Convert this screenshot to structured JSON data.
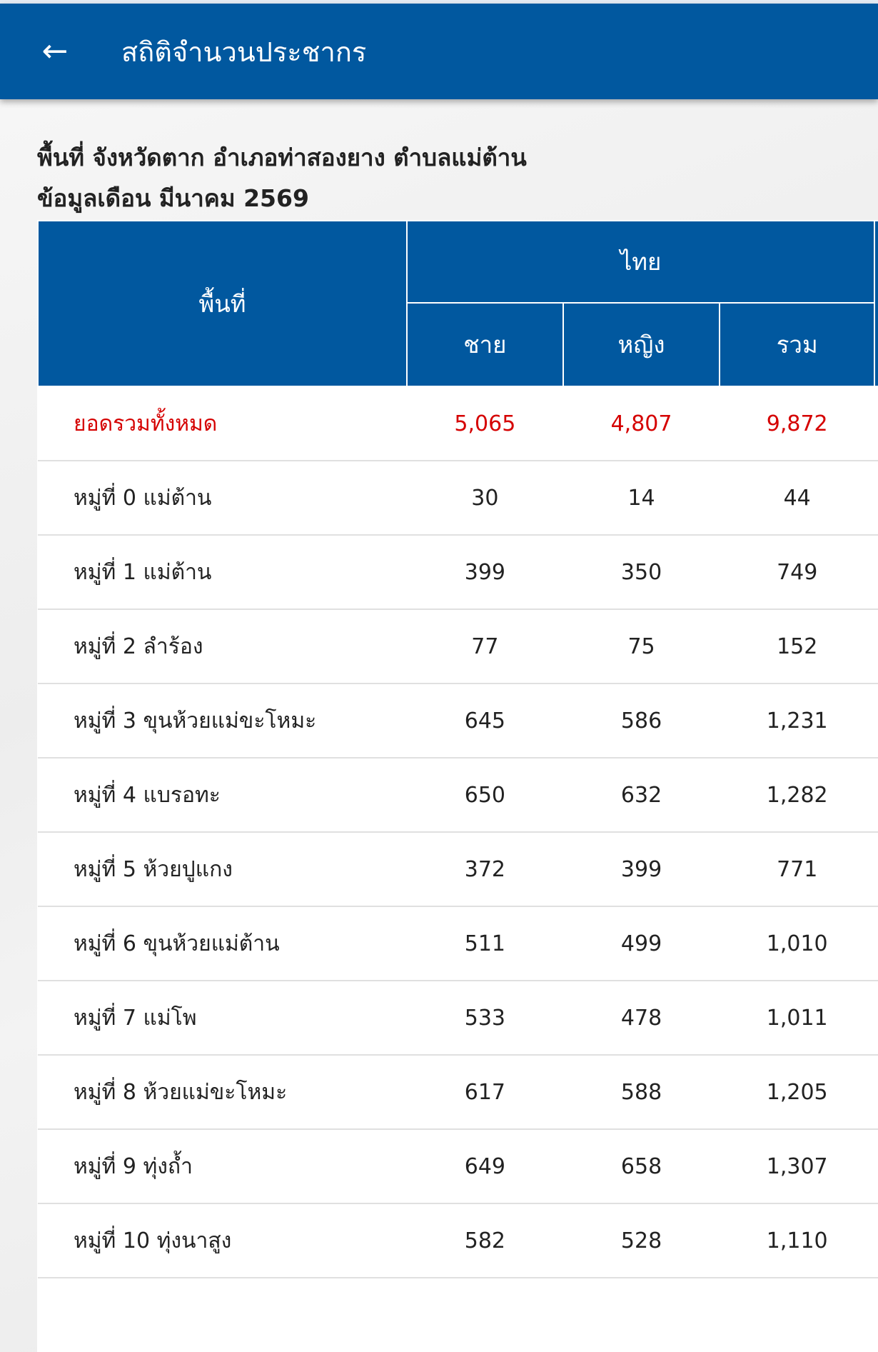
{
  "appbar": {
    "title": "สถิติจำนวนประชากร",
    "back_icon": "arrow-left-icon"
  },
  "heading": {
    "line1": "พื้นที่ จังหวัดตาก อำเภอท่าสองยาง ตำบลแม่ต้าน",
    "line2": "ข้อมูลเดือน มีนาคม 2569"
  },
  "table": {
    "header": {
      "area": "พื้นที่",
      "group": "ไทย",
      "male": "ชาย",
      "female": "หญิง",
      "total": "รวม"
    },
    "total_row": {
      "label": "ยอดรวมทั้งหมด",
      "male": "5,065",
      "female": "4,807",
      "total": "9,872"
    },
    "rows": [
      {
        "label": "หมู่ที่ 0 แม่ต้าน",
        "male": "30",
        "female": "14",
        "total": "44"
      },
      {
        "label": "หมู่ที่ 1 แม่ต้าน",
        "male": "399",
        "female": "350",
        "total": "749"
      },
      {
        "label": "หมู่ที่ 2 ลำร้อง",
        "male": "77",
        "female": "75",
        "total": "152"
      },
      {
        "label": "หมู่ที่ 3 ขุนห้วยแม่ขะโหมะ",
        "male": "645",
        "female": "586",
        "total": "1,231"
      },
      {
        "label": "หมู่ที่ 4 แบรอทะ",
        "male": "650",
        "female": "632",
        "total": "1,282"
      },
      {
        "label": "หมู่ที่ 5 ห้วยปูแกง",
        "male": "372",
        "female": "399",
        "total": "771"
      },
      {
        "label": "หมู่ที่ 6 ขุนห้วยแม่ต้าน",
        "male": "511",
        "female": "499",
        "total": "1,010"
      },
      {
        "label": "หมู่ที่ 7 แม่โพ",
        "male": "533",
        "female": "478",
        "total": "1,011"
      },
      {
        "label": "หมู่ที่ 8 ห้วยแม่ขะโหมะ",
        "male": "617",
        "female": "588",
        "total": "1,205"
      },
      {
        "label": "หมู่ที่ 9 ทุ่งถ้ำ",
        "male": "649",
        "female": "658",
        "total": "1,307"
      },
      {
        "label": "หมู่ที่ 10 ทุ่งนาสูง",
        "male": "582",
        "female": "528",
        "total": "1,110"
      }
    ]
  },
  "colors": {
    "primary": "#01589f",
    "total_text": "#d50000"
  }
}
